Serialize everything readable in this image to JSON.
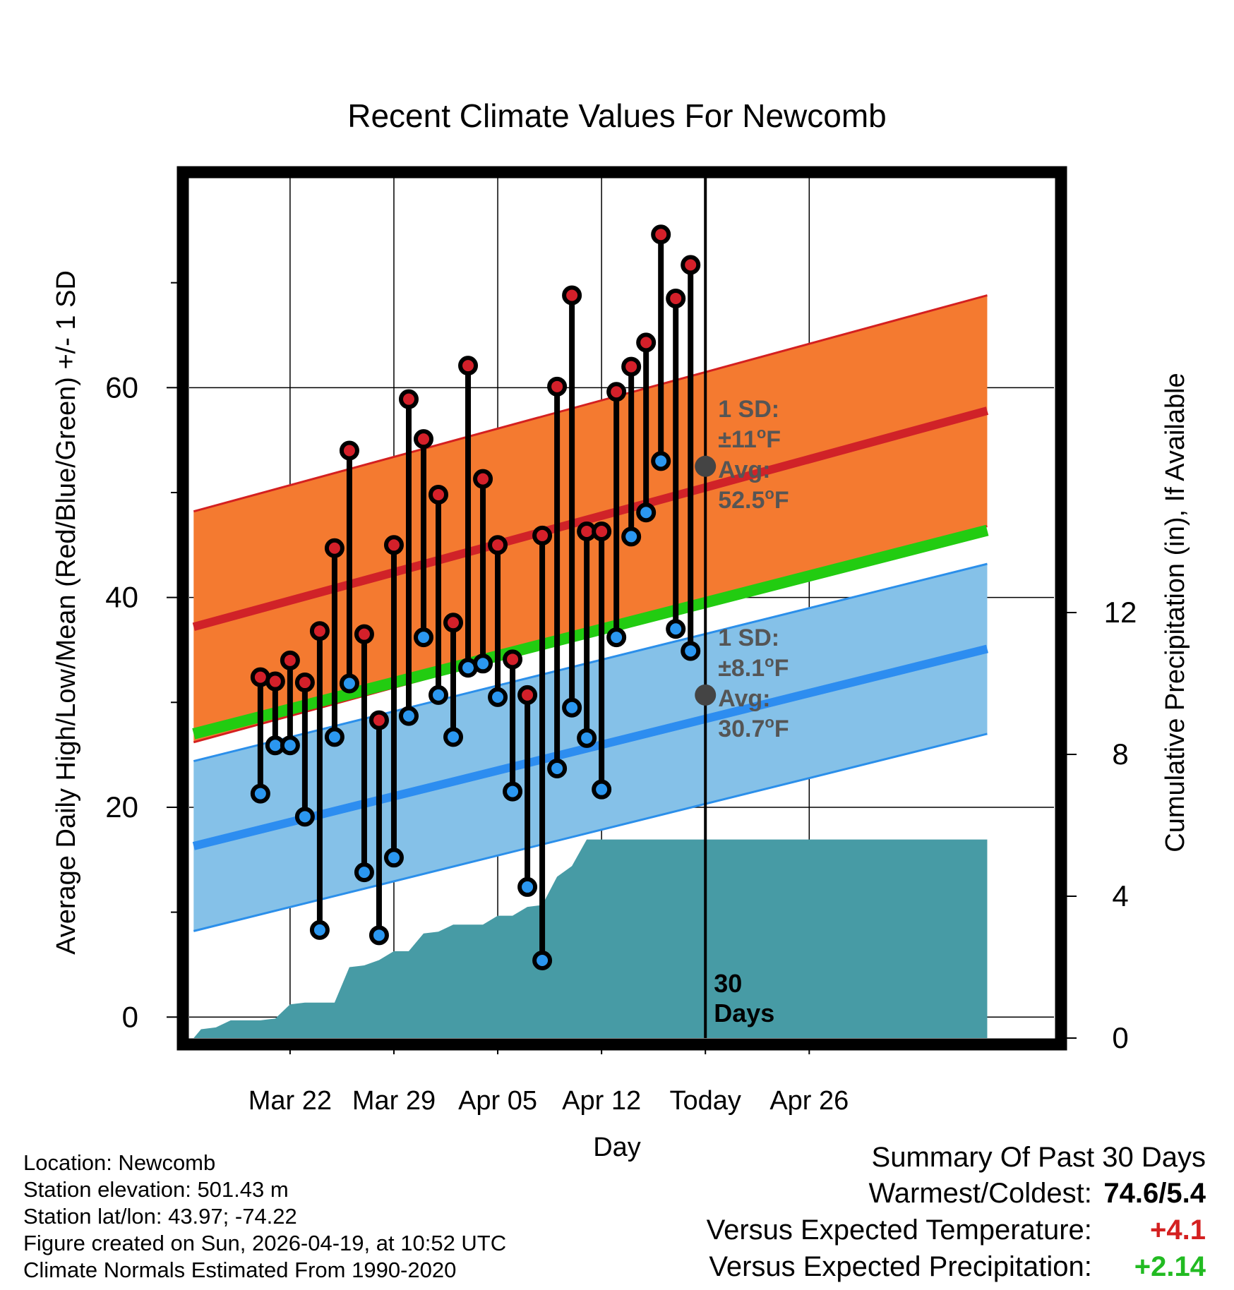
{
  "chart_data": {
    "type": "line",
    "title": "Recent Climate Values For Newcomb",
    "xlabel": "Day",
    "ylabel_left": "Average Daily High/Low/Mean (Red/Blue/Green) +/- 1 SD",
    "ylabel_right": "Cumulative Precipitation (in), If Available",
    "x_range": [
      -3.8,
      54.5
    ],
    "y_left_range": [
      -2,
      80
    ],
    "y_right_range": [
      0,
      24.26
    ],
    "x_ticks": [
      {
        "day": 3,
        "label": "Mar 22"
      },
      {
        "day": 10,
        "label": "Mar 29"
      },
      {
        "day": 17,
        "label": "Apr 05"
      },
      {
        "day": 24,
        "label": "Apr 12"
      },
      {
        "day": 31,
        "label": "Today"
      },
      {
        "day": 38,
        "label": "Apr 26"
      }
    ],
    "y_left_ticks": [
      0,
      20,
      40,
      60
    ],
    "y_left_minor": [
      10,
      30,
      50,
      70
    ],
    "y_right_ticks": [
      0,
      4,
      8,
      12
    ],
    "today_day": 31,
    "today_label": "30\nDays",
    "normals": {
      "day_start": -3.5,
      "day_end": 50.0,
      "high_mean": [
        37.2,
        57.8
      ],
      "high_sd": 11,
      "low_mean": [
        16.3,
        35.1
      ],
      "low_sd": 8.1,
      "mean": [
        27.0,
        46.4
      ]
    },
    "annotation_high": {
      "line1": "1 SD:",
      "line2": "±11",
      "line3": "Avg:",
      "line4": "52.5",
      "unit": "F",
      "value": 52.5
    },
    "annotation_low": {
      "line1": "1 SD:",
      "line2": "±8.1",
      "line3": "Avg:",
      "line4": "30.7",
      "unit": "F",
      "value": 30.7
    },
    "daily": {
      "days": [
        1,
        2,
        3,
        4,
        5,
        6,
        7,
        8,
        9,
        10,
        11,
        12,
        13,
        14,
        15,
        16,
        17,
        18,
        19,
        20,
        21,
        22,
        23,
        24,
        25,
        26,
        27,
        28,
        29,
        30
      ],
      "high": [
        32.4,
        32.0,
        34.0,
        31.9,
        36.8,
        44.7,
        54.0,
        36.5,
        28.3,
        45.0,
        58.9,
        55.1,
        49.8,
        37.6,
        62.1,
        51.3,
        45.0,
        34.1,
        30.7,
        45.9,
        60.1,
        68.8,
        46.3,
        46.3,
        59.6,
        62.0,
        64.3,
        74.6,
        68.5,
        71.7
      ],
      "low": [
        21.3,
        25.9,
        25.9,
        19.1,
        8.3,
        26.7,
        31.8,
        13.8,
        7.8,
        15.2,
        28.7,
        36.2,
        30.7,
        26.7,
        33.3,
        33.7,
        30.5,
        21.5,
        12.4,
        5.4,
        23.7,
        29.5,
        26.6,
        21.7,
        36.2,
        45.8,
        48.1,
        53.0,
        37.0,
        34.9
      ]
    },
    "precip": {
      "days": [
        -3.5,
        -3.0,
        -2.0,
        -1.0,
        0.0,
        1.0,
        2.0,
        3.0,
        4.0,
        5.0,
        6.0,
        7.0,
        8.0,
        9.0,
        10.0,
        11.0,
        12.0,
        13.0,
        14.0,
        15.0,
        16.0,
        17.0,
        18.0,
        19.0,
        20.0,
        21.0,
        22.0,
        23.0,
        24.0,
        25.0,
        26.0,
        27.0,
        28.0,
        29.0,
        30.0,
        31.0,
        50.0
      ],
      "values": [
        0.0,
        0.25,
        0.3,
        0.5,
        0.5,
        0.5,
        0.55,
        0.95,
        1.0,
        1.0,
        1.0,
        2.0,
        2.05,
        2.2,
        2.45,
        2.45,
        2.95,
        3.0,
        3.2,
        3.2,
        3.2,
        3.45,
        3.45,
        3.7,
        3.75,
        4.55,
        4.85,
        5.6,
        5.6,
        5.6,
        5.6,
        5.6,
        5.6,
        5.6,
        5.6,
        5.6,
        5.6
      ]
    }
  },
  "info": {
    "location": "Location: Newcomb",
    "elevation": "Station elevation: 501.43 m",
    "latlon": "Station lat/lon: 43.97; -74.22",
    "created": "Figure created on Sun, 2026-04-19, at 10:52 UTC",
    "normals": "Climate Normals Estimated From 1990-2020"
  },
  "summary": {
    "title": "Summary Of Past 30 Days",
    "warmest_label": "Warmest/Coldest:",
    "warmest_value": "74.6/5.4",
    "temp_label": "Versus Expected Temperature:",
    "temp_value": "+4.1",
    "precip_label": "Versus Expected Precipitation:",
    "precip_value": "+2.14"
  },
  "colors": {
    "high_band": "#f47a30",
    "high_band_edge": "#d42020",
    "high_line": "#d02228",
    "low_band": "#85c1e8",
    "low_band_edge": "#2b8fea",
    "low_line": "#2d8df0",
    "mean_line": "#22cc11",
    "precip_fill": "#479ba5",
    "high_dot": "#d4202a",
    "low_dot": "#2b97f0",
    "annotation_text": "#555555",
    "temp_value": "#d42020",
    "precip_value": "#22bb22"
  }
}
